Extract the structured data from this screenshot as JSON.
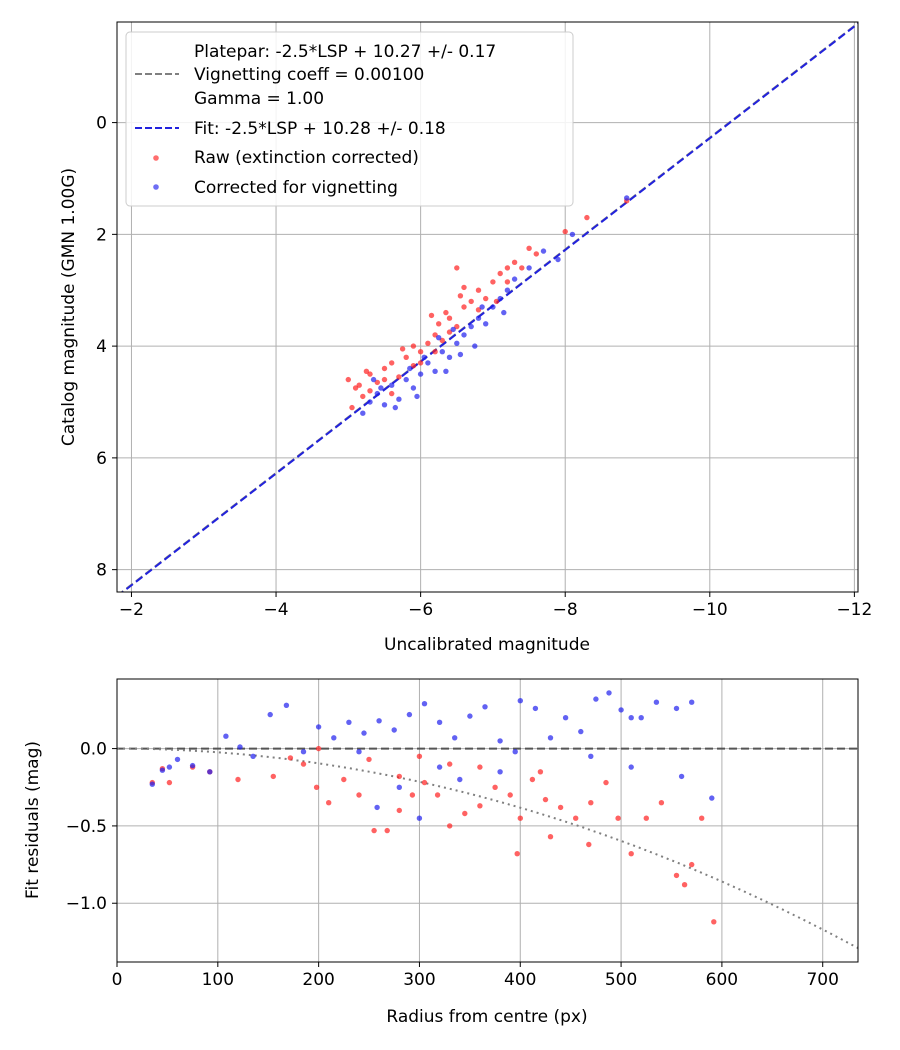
{
  "chart_data": [
    {
      "type": "scatter",
      "xlabel": "Uncalibrated magnitude",
      "ylabel": "Catalog magnitude (GMN 1.00G)",
      "xlim": [
        -1.8,
        -12.05
      ],
      "ylim": [
        8.4,
        -1.8
      ],
      "xticks": [
        -2,
        -4,
        -6,
        -8,
        -10,
        -12
      ],
      "yticks": [
        0,
        2,
        4,
        6,
        8
      ],
      "xtick_labels": [
        "−2",
        "−4",
        "−6",
        "−8",
        "−10",
        "−12"
      ],
      "ytick_labels": [
        "0",
        "2",
        "4",
        "6",
        "8"
      ],
      "grid": true,
      "legend": {
        "location": "top-left",
        "platepar_lines": [
          "Platepar: -2.5*LSP + 10.27 +/- 0.17",
          "Vignetting coeff = 0.00100",
          "Gamma = 1.00"
        ],
        "fit_label": "Fit: -2.5*LSP + 10.28 +/- 0.18",
        "raw_label": "Raw (extinction corrected)",
        "corrected_label": "Corrected for vignetting"
      },
      "lines": [
        {
          "name": "Platepar",
          "slope": 1.0,
          "intercept": 10.27,
          "color": "#808080",
          "style": "dashed"
        },
        {
          "name": "Fit",
          "slope": 1.0,
          "intercept": 10.28,
          "color": "#2222dd",
          "style": "dashed"
        }
      ],
      "series": [
        {
          "name": "Raw (extinction corrected)",
          "color": "#ff2020",
          "points": [
            [
              -5.0,
              4.6
            ],
            [
              -5.1,
              4.75
            ],
            [
              -5.2,
              4.9
            ],
            [
              -5.05,
              5.1
            ],
            [
              -5.3,
              4.5
            ],
            [
              -5.4,
              4.65
            ],
            [
              -5.5,
              4.4
            ],
            [
              -5.3,
              4.8
            ],
            [
              -5.6,
              4.3
            ],
            [
              -5.7,
              4.55
            ],
            [
              -5.8,
              4.2
            ],
            [
              -5.9,
              4.35
            ],
            [
              -5.75,
              4.05
            ],
            [
              -6.0,
              4.1
            ],
            [
              -6.1,
              3.95
            ],
            [
              -6.2,
              3.8
            ],
            [
              -6.3,
              3.9
            ],
            [
              -6.25,
              3.6
            ],
            [
              -6.4,
              3.5
            ],
            [
              -6.5,
              3.65
            ],
            [
              -6.35,
              3.4
            ],
            [
              -6.6,
              3.3
            ],
            [
              -6.7,
              3.2
            ],
            [
              -6.55,
              3.1
            ],
            [
              -6.8,
              3.0
            ],
            [
              -6.9,
              3.15
            ],
            [
              -7.0,
              2.85
            ],
            [
              -7.1,
              2.7
            ],
            [
              -7.05,
              3.2
            ],
            [
              -7.2,
              2.6
            ],
            [
              -7.3,
              2.5
            ],
            [
              -7.5,
              2.25
            ],
            [
              -7.6,
              2.35
            ],
            [
              -6.5,
              2.6
            ],
            [
              -8.0,
              1.95
            ],
            [
              -8.3,
              1.7
            ],
            [
              -8.85,
              1.4
            ],
            [
              -5.5,
              4.6
            ],
            [
              -6.0,
              4.3
            ],
            [
              -6.4,
              3.75
            ],
            [
              -5.9,
              4.0
            ],
            [
              -6.8,
              3.35
            ],
            [
              -7.2,
              2.85
            ],
            [
              -5.6,
              4.85
            ],
            [
              -6.2,
              4.1
            ],
            [
              -6.6,
              2.95
            ],
            [
              -7.4,
              2.6
            ],
            [
              -5.25,
              4.45
            ],
            [
              -5.15,
              4.7
            ],
            [
              -6.15,
              3.45
            ]
          ]
        },
        {
          "name": "Corrected for vignetting",
          "color": "#2020ee",
          "points": [
            [
              -5.2,
              5.2
            ],
            [
              -5.3,
              5.0
            ],
            [
              -5.4,
              4.85
            ],
            [
              -5.5,
              5.05
            ],
            [
              -5.6,
              4.7
            ],
            [
              -5.7,
              4.95
            ],
            [
              -5.8,
              4.6
            ],
            [
              -5.85,
              4.4
            ],
            [
              -5.9,
              4.75
            ],
            [
              -6.0,
              4.5
            ],
            [
              -6.1,
              4.3
            ],
            [
              -6.2,
              4.45
            ],
            [
              -6.3,
              4.1
            ],
            [
              -6.4,
              4.2
            ],
            [
              -6.5,
              3.95
            ],
            [
              -6.55,
              4.15
            ],
            [
              -6.6,
              3.8
            ],
            [
              -6.7,
              3.65
            ],
            [
              -6.8,
              3.5
            ],
            [
              -6.9,
              3.6
            ],
            [
              -7.0,
              3.3
            ],
            [
              -7.1,
              3.15
            ],
            [
              -7.2,
              3.0
            ],
            [
              -7.3,
              2.8
            ],
            [
              -7.5,
              2.6
            ],
            [
              -7.7,
              2.3
            ],
            [
              -7.9,
              2.45
            ],
            [
              -8.1,
              2.0
            ],
            [
              -8.85,
              1.35
            ],
            [
              -5.35,
              4.6
            ],
            [
              -5.95,
              4.9
            ],
            [
              -6.45,
              3.7
            ],
            [
              -6.75,
              4.0
            ],
            [
              -7.15,
              3.4
            ],
            [
              -5.65,
              5.1
            ],
            [
              -6.05,
              4.2
            ],
            [
              -6.35,
              4.45
            ],
            [
              -6.85,
              3.3
            ],
            [
              -5.45,
              4.75
            ],
            [
              -6.25,
              3.85
            ]
          ]
        }
      ]
    },
    {
      "type": "scatter",
      "xlabel": "Radius from centre (px)",
      "ylabel": "Fit residuals (mag)",
      "xlim": [
        0,
        735
      ],
      "ylim": [
        -1.38,
        0.45
      ],
      "xticks": [
        0,
        100,
        200,
        300,
        400,
        500,
        600,
        700
      ],
      "yticks": [
        0.0,
        -0.5,
        -1.0
      ],
      "xtick_labels": [
        "0",
        "100",
        "200",
        "300",
        "400",
        "500",
        "600",
        "700"
      ],
      "ytick_labels": [
        "0.0",
        "−0.5",
        "−1.0"
      ],
      "grid": true,
      "lines": [
        {
          "name": "Zero line",
          "type": "hline",
          "y": 0.0,
          "color": "#555555",
          "style": "dashed"
        },
        {
          "name": "Vignetting model",
          "type": "curve",
          "coeff": 0.001,
          "color": "#808080",
          "style": "dotted"
        }
      ],
      "series": [
        {
          "name": "Raw",
          "color": "#ff2020",
          "points": [
            [
              35,
              -0.22
            ],
            [
              45,
              -0.13
            ],
            [
              52,
              -0.22
            ],
            [
              75,
              -0.12
            ],
            [
              92,
              -0.15
            ],
            [
              120,
              -0.2
            ],
            [
              155,
              -0.18
            ],
            [
              172,
              -0.06
            ],
            [
              185,
              -0.1
            ],
            [
              198,
              -0.25
            ],
            [
              210,
              -0.35
            ],
            [
              225,
              -0.2
            ],
            [
              240,
              -0.3
            ],
            [
              255,
              -0.53
            ],
            [
              268,
              -0.53
            ],
            [
              280,
              -0.4
            ],
            [
              293,
              -0.3
            ],
            [
              305,
              -0.22
            ],
            [
              318,
              -0.3
            ],
            [
              330,
              -0.5
            ],
            [
              345,
              -0.42
            ],
            [
              360,
              -0.37
            ],
            [
              375,
              -0.25
            ],
            [
              390,
              -0.3
            ],
            [
              400,
              -0.45
            ],
            [
              412,
              -0.2
            ],
            [
              425,
              -0.33
            ],
            [
              440,
              -0.38
            ],
            [
              455,
              -0.45
            ],
            [
              470,
              -0.35
            ],
            [
              485,
              -0.22
            ],
            [
              497,
              -0.45
            ],
            [
              510,
              -0.68
            ],
            [
              525,
              -0.45
            ],
            [
              540,
              -0.35
            ],
            [
              555,
              -0.82
            ],
            [
              563,
              -0.88
            ],
            [
              570,
              -0.75
            ],
            [
              580,
              -0.45
            ],
            [
              592,
              -1.12
            ],
            [
              397,
              -0.68
            ],
            [
              430,
              -0.57
            ],
            [
              468,
              -0.62
            ],
            [
              250,
              -0.07
            ],
            [
              300,
              -0.05
            ],
            [
              360,
              -0.12
            ],
            [
              420,
              -0.15
            ],
            [
              280,
              -0.18
            ],
            [
              330,
              -0.1
            ],
            [
              200,
              0.0
            ]
          ]
        },
        {
          "name": "Corrected",
          "color": "#2020ee",
          "points": [
            [
              35,
              -0.23
            ],
            [
              45,
              -0.14
            ],
            [
              52,
              -0.12
            ],
            [
              60,
              -0.07
            ],
            [
              75,
              -0.11
            ],
            [
              92,
              -0.15
            ],
            [
              108,
              0.08
            ],
            [
              122,
              0.01
            ],
            [
              135,
              -0.05
            ],
            [
              152,
              0.22
            ],
            [
              168,
              0.28
            ],
            [
              185,
              -0.02
            ],
            [
              200,
              0.14
            ],
            [
              215,
              0.07
            ],
            [
              230,
              0.17
            ],
            [
              245,
              0.1
            ],
            [
              260,
              0.18
            ],
            [
              275,
              0.12
            ],
            [
              290,
              0.22
            ],
            [
              305,
              0.29
            ],
            [
              320,
              0.17
            ],
            [
              335,
              0.07
            ],
            [
              350,
              0.21
            ],
            [
              365,
              0.27
            ],
            [
              380,
              0.05
            ],
            [
              395,
              -0.02
            ],
            [
              400,
              0.31
            ],
            [
              415,
              0.26
            ],
            [
              430,
              0.07
            ],
            [
              445,
              0.2
            ],
            [
              460,
              0.11
            ],
            [
              475,
              0.32
            ],
            [
              488,
              0.36
            ],
            [
              500,
              0.25
            ],
            [
              510,
              0.2
            ],
            [
              520,
              0.2
            ],
            [
              535,
              0.3
            ],
            [
              555,
              0.26
            ],
            [
              570,
              0.3
            ],
            [
              590,
              -0.32
            ],
            [
              258,
              -0.38
            ],
            [
              300,
              -0.45
            ],
            [
              340,
              -0.2
            ],
            [
              380,
              -0.15
            ],
            [
              470,
              -0.05
            ],
            [
              510,
              -0.12
            ],
            [
              560,
              -0.18
            ],
            [
              280,
              -0.25
            ],
            [
              240,
              -0.02
            ],
            [
              320,
              -0.12
            ]
          ]
        }
      ]
    }
  ]
}
